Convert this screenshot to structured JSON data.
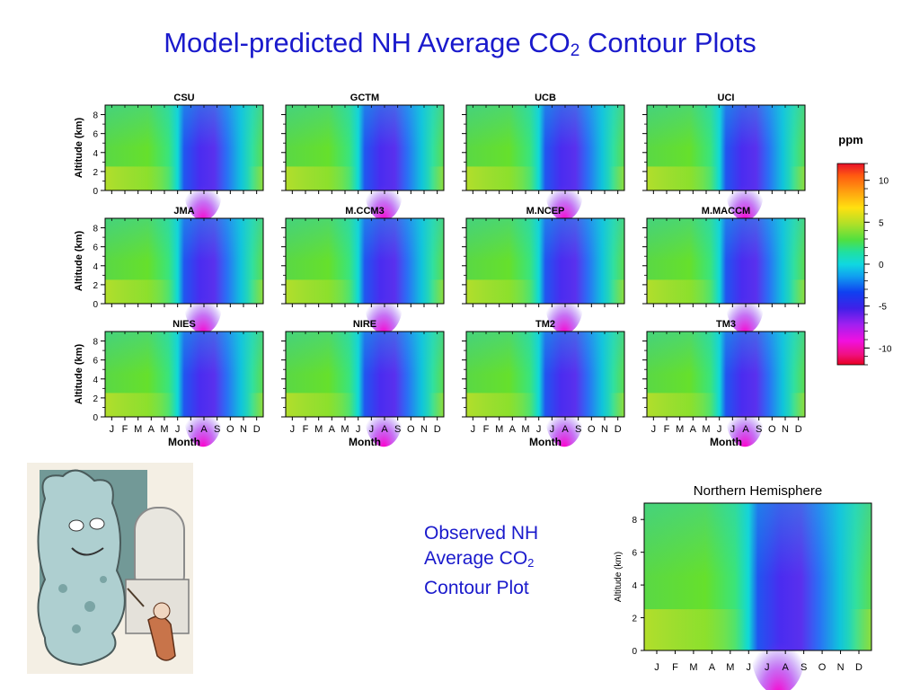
{
  "title": {
    "main": "Model-predicted NH Average CO",
    "sub": "2",
    "suffix": " Contour Plots"
  },
  "observed_caption": {
    "line1": "Observed NH",
    "line2a": "Average CO",
    "line2sub": "2",
    "line3": "Contour Plot"
  },
  "colorbar": {
    "label": "ppm",
    "ticks": [
      "10",
      "5",
      "0",
      "-5",
      "-10"
    ]
  },
  "chart_data": [
    {
      "type": "heatmap",
      "panels": [
        "CSU",
        "GCTM",
        "UCB",
        "UCI",
        "JMA",
        "M.CCM3",
        "M.NCEP",
        "M.MACCM",
        "NIES",
        "NIRE",
        "TM2",
        "TM3"
      ],
      "x": [
        "J",
        "F",
        "M",
        "A",
        "M",
        "J",
        "J",
        "A",
        "S",
        "O",
        "N",
        "D"
      ],
      "xlabel": "Month",
      "ylabel": "Altitude (km)",
      "yticks": [
        "0",
        "2",
        "4",
        "6",
        "8"
      ],
      "ylim": [
        0,
        9
      ],
      "colorbar_range": [
        -12,
        12
      ],
      "units": "ppm"
    },
    {
      "type": "heatmap",
      "title": "Northern Hemisphere",
      "x": [
        "J",
        "F",
        "M",
        "A",
        "M",
        "J",
        "J",
        "A",
        "S",
        "O",
        "N",
        "D"
      ],
      "ylabel": "Altitude (km)",
      "yticks": [
        "0",
        "2",
        "4",
        "6",
        "8"
      ],
      "ylim": [
        0,
        9
      ]
    }
  ],
  "colors": {
    "title_blue": "#1a1acc",
    "cold": "#2030ee",
    "warm": "#66dd33"
  }
}
